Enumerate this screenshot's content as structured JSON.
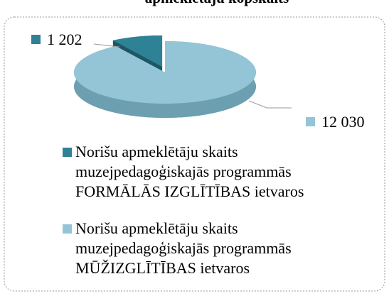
{
  "chart_data": {
    "type": "pie",
    "title": "apmeklētāju kopskaits",
    "categories": [
      "Norišu apmeklētāju skaits muzejpedagoģiskajās programmās FORMĀLĀS IZGLĪTĪBAS ietvaros",
      "Norišu apmeklētāju skaits muzejpedagoģiskajās programmās MŪŽIZGLĪTĪBAS ietvaros"
    ],
    "values": [
      1202,
      12030
    ],
    "value_labels": [
      "1 202",
      "12 030"
    ],
    "colors": [
      "#2f8196",
      "#94c5d6"
    ],
    "side_colors": [
      "#1d5766",
      "#6c9fb0"
    ]
  }
}
